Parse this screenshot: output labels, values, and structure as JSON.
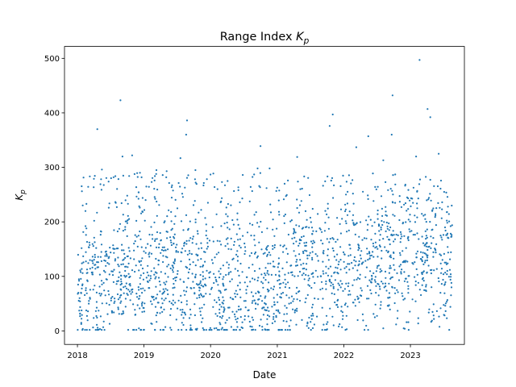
{
  "chart_data": {
    "type": "scatter",
    "title": "Range Index",
    "title_symbol": "K",
    "title_subscript": "p",
    "xlabel": "Date",
    "ylabel_symbol": "K",
    "ylabel_subscript": "p",
    "xlim": [
      "2017-10-22",
      "2023-10-24"
    ],
    "ylim": [
      -24.8,
      521.8
    ],
    "x_ticks": [
      "2018-01-01",
      "2019-01-01",
      "2020-01-01",
      "2021-01-01",
      "2022-01-01",
      "2023-01-01"
    ],
    "x_tick_labels": [
      "2018",
      "2019",
      "2020",
      "2021",
      "2022",
      "2023"
    ],
    "y_ticks": [
      0,
      100,
      200,
      300,
      400,
      500
    ],
    "y_tick_labels": [
      "0",
      "100",
      "200",
      "300",
      "400",
      "500"
    ],
    "grid": false,
    "marker_color": "#1f77b4",
    "series": [
      {
        "points": [
          {
            "x": "2018-01-10",
            "y": 92
          },
          {
            "x": "2018-01-22",
            "y": 15
          },
          {
            "x": "2018-02-14",
            "y": 220
          },
          {
            "x": "2018-03-05",
            "y": 55
          },
          {
            "x": "2018-04-20",
            "y": 370
          },
          {
            "x": "2018-05-15",
            "y": 296
          },
          {
            "x": "2018-06-10",
            "y": 140
          },
          {
            "x": "2018-07-05",
            "y": 60
          },
          {
            "x": "2018-08-25",
            "y": 423
          },
          {
            "x": "2018-09-05",
            "y": 320
          },
          {
            "x": "2018-10-01",
            "y": 248
          },
          {
            "x": "2018-10-28",
            "y": 322
          },
          {
            "x": "2018-11-15",
            "y": 30
          },
          {
            "x": "2018-12-10",
            "y": 290
          },
          {
            "x": "2019-01-10",
            "y": 240
          },
          {
            "x": "2019-03-10",
            "y": 295
          },
          {
            "x": "2019-05-05",
            "y": 293
          },
          {
            "x": "2019-07-20",
            "y": 317
          },
          {
            "x": "2019-08-25",
            "y": 386
          },
          {
            "x": "2019-08-20",
            "y": 360
          },
          {
            "x": "2019-10-10",
            "y": 295
          },
          {
            "x": "2019-11-20",
            "y": 5
          },
          {
            "x": "2020-02-20",
            "y": 15
          },
          {
            "x": "2020-06-15",
            "y": 40
          },
          {
            "x": "2020-09-15",
            "y": 298
          },
          {
            "x": "2020-10-01",
            "y": 339
          },
          {
            "x": "2020-10-25",
            "y": 3
          },
          {
            "x": "2020-11-20",
            "y": 298
          },
          {
            "x": "2021-02-10",
            "y": 270
          },
          {
            "x": "2021-04-20",
            "y": 319
          },
          {
            "x": "2021-07-15",
            "y": 5
          },
          {
            "x": "2021-10-15",
            "y": 376
          },
          {
            "x": "2021-11-01",
            "y": 397
          },
          {
            "x": "2022-01-10",
            "y": 2
          },
          {
            "x": "2022-03-10",
            "y": 337
          },
          {
            "x": "2022-05-15",
            "y": 357
          },
          {
            "x": "2022-06-20",
            "y": 25
          },
          {
            "x": "2022-08-05",
            "y": 313
          },
          {
            "x": "2022-09-25",
            "y": 432
          },
          {
            "x": "2022-09-20",
            "y": 360
          },
          {
            "x": "2022-12-01",
            "y": 4
          },
          {
            "x": "2023-02-01",
            "y": 320
          },
          {
            "x": "2023-02-20",
            "y": 497
          },
          {
            "x": "2023-04-05",
            "y": 407
          },
          {
            "x": "2023-04-20",
            "y": 392
          },
          {
            "x": "2023-05-10",
            "y": 22
          },
          {
            "x": "2023-06-05",
            "y": 325
          },
          {
            "x": "2023-07-01",
            "y": 104
          },
          {
            "x": "2023-07-20",
            "y": 104
          },
          {
            "x": "2023-08-10",
            "y": 104
          },
          {
            "x": "2023-07-01",
            "y": 176
          },
          {
            "x": "2023-07-20",
            "y": 176
          },
          {
            "x": "2023-08-15",
            "y": 176
          },
          {
            "x": "2023-07-10",
            "y": 190
          },
          {
            "x": "2023-07-05",
            "y": 255
          }
        ],
        "dense_points_note": "Roughly 2000 further daily points fill the band between about 0 and 300 across the whole range; most fall between 20 and 200."
      }
    ]
  }
}
